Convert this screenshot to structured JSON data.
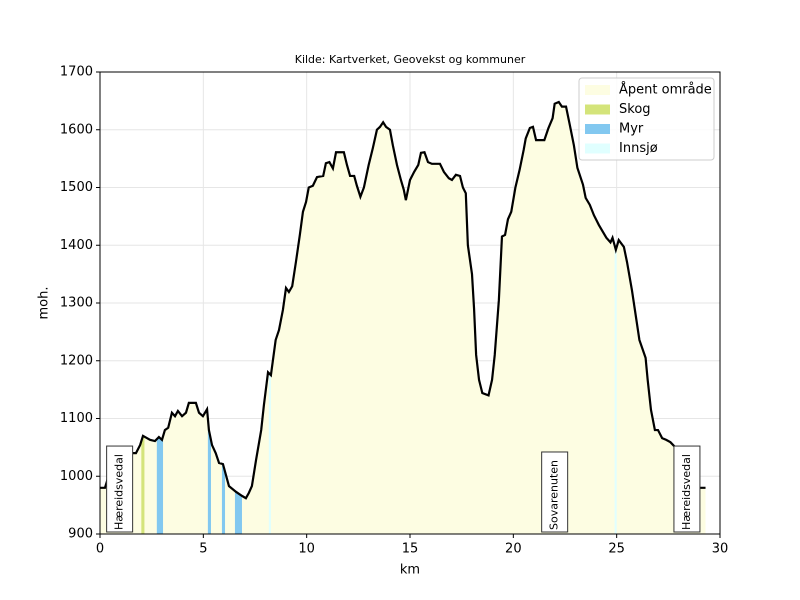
{
  "chart_data": {
    "type": "area",
    "title": "Kilde: Kartverket, Geovekst og kommuner",
    "xlabel": "km",
    "ylabel": "moh.",
    "xlim": [
      0,
      30
    ],
    "ylim": [
      900,
      1700
    ],
    "xticks": [
      0,
      5,
      10,
      15,
      20,
      25,
      30
    ],
    "yticks": [
      900,
      1000,
      1100,
      1200,
      1300,
      1400,
      1500,
      1600,
      1700
    ],
    "grid": true,
    "legend": "upper right",
    "line_color": "#000000",
    "x": [
      0,
      0.24,
      0.73,
      1.45,
      1.74,
      1.94,
      2.08,
      2.42,
      2.66,
      2.85,
      3.0,
      3.14,
      3.3,
      3.48,
      3.63,
      3.77,
      3.97,
      4.16,
      4.3,
      4.64,
      4.79,
      4.98,
      5.18,
      5.27,
      5.42,
      5.6,
      5.76,
      5.95,
      6.24,
      6.58,
      6.87,
      7.06,
      7.2,
      7.35,
      7.55,
      7.8,
      7.93,
      8.13,
      8.27,
      8.5,
      8.66,
      8.85,
      9.0,
      9.14,
      9.3,
      9.48,
      9.67,
      9.82,
      9.97,
      10.1,
      10.3,
      10.5,
      10.8,
      10.93,
      11.1,
      11.27,
      11.42,
      11.8,
      11.95,
      12.1,
      12.3,
      12.43,
      12.6,
      12.77,
      13.0,
      13.2,
      13.4,
      13.55,
      13.7,
      13.84,
      14.03,
      14.17,
      14.37,
      14.56,
      14.7,
      14.8,
      15.0,
      15.2,
      15.4,
      15.53,
      15.7,
      15.87,
      16.06,
      16.45,
      16.64,
      16.88,
      17.03,
      17.22,
      17.42,
      17.56,
      17.7,
      17.8,
      18.0,
      18.1,
      18.2,
      18.34,
      18.5,
      18.8,
      18.97,
      19.1,
      19.3,
      19.45,
      19.6,
      19.74,
      19.9,
      20.1,
      20.3,
      20.5,
      20.6,
      20.8,
      20.95,
      21.1,
      21.5,
      21.7,
      21.9,
      22.0,
      22.2,
      22.35,
      22.55,
      22.74,
      22.93,
      23.1,
      23.37,
      23.5,
      23.7,
      23.9,
      24.14,
      24.5,
      24.7,
      24.8,
      24.96,
      25.1,
      25.35,
      25.5,
      25.74,
      26.1,
      26.4,
      26.5,
      26.66,
      26.85,
      27.0,
      27.2,
      27.4,
      27.6,
      27.87,
      28.06,
      28.5,
      29.0,
      29.3
    ],
    "values": [
      980,
      980,
      1037,
      1040,
      1040,
      1054,
      1070,
      1063,
      1061,
      1068,
      1063,
      1080,
      1084,
      1110,
      1104,
      1113,
      1104,
      1110,
      1127,
      1127,
      1110,
      1104,
      1116,
      1080,
      1054,
      1040,
      1023,
      1021,
      983,
      973,
      966,
      962,
      971,
      983,
      1028,
      1080,
      1123,
      1180,
      1175,
      1236,
      1253,
      1288,
      1326,
      1319,
      1329,
      1371,
      1418,
      1458,
      1475,
      1500,
      1503,
      1518,
      1520,
      1542,
      1544,
      1533,
      1561,
      1561,
      1539,
      1520,
      1520,
      1503,
      1484,
      1500,
      1539,
      1568,
      1600,
      1605,
      1613,
      1605,
      1600,
      1573,
      1539,
      1513,
      1496,
      1478,
      1513,
      1527,
      1539,
      1560,
      1561,
      1544,
      1541,
      1541,
      1527,
      1516,
      1513,
      1522,
      1520,
      1500,
      1490,
      1400,
      1350,
      1290,
      1210,
      1167,
      1144,
      1140,
      1167,
      1210,
      1305,
      1415,
      1418,
      1445,
      1458,
      1500,
      1530,
      1565,
      1585,
      1603,
      1605,
      1582,
      1582,
      1603,
      1620,
      1645,
      1648,
      1640,
      1640,
      1607,
      1573,
      1534,
      1505,
      1482,
      1470,
      1452,
      1435,
      1413,
      1405,
      1413,
      1392,
      1409,
      1397,
      1371,
      1322,
      1236,
      1205,
      1167,
      1115,
      1080,
      1080,
      1066,
      1063,
      1059,
      1049,
      1045,
      1028,
      980,
      980
    ],
    "landcover": [
      {
        "name": "Åpent område",
        "color": "#fdfde2"
      },
      {
        "name": "Skog",
        "color": "#d4e47a",
        "spans": [
          [
            2.0,
            2.15
          ]
        ]
      },
      {
        "name": "Myr",
        "color": "#82c8f0",
        "spans": [
          [
            2.75,
            3.05
          ],
          [
            5.22,
            5.37
          ],
          [
            5.9,
            6.05
          ],
          [
            6.53,
            6.87
          ]
        ]
      },
      {
        "name": "Innsjø",
        "color": "#e0ffff",
        "spans": [
          [
            8.17,
            8.27
          ],
          [
            24.9,
            25.0
          ]
        ]
      }
    ],
    "annotations": [
      {
        "text": "Hæreidsvedal",
        "x": 0.95
      },
      {
        "text": "Sovarenuten",
        "x": 22.0
      },
      {
        "text": "Hæreidsvedal",
        "x": 28.4
      }
    ]
  }
}
